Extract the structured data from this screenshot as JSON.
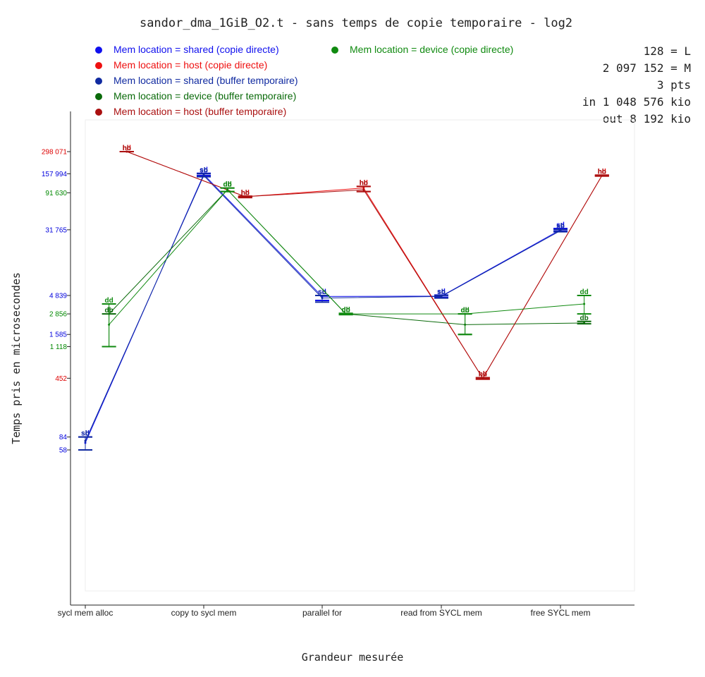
{
  "chart_data": {
    "type": "line",
    "title": "sandor_dma_1GiB_O2.t - sans temps de copie temporaire - log2",
    "xlabel": "Grandeur mesurée",
    "ylabel": "Temps pris en microsecondes",
    "y_scale": "log2",
    "categories": [
      "sycl mem alloc",
      "copy to sycl mem",
      "parallel for",
      "read from SYCL mem",
      "free SYCL mem"
    ],
    "y_ticks": [
      {
        "label": "298 071",
        "value": 298071,
        "color": "#dd0000"
      },
      {
        "label": "157 994",
        "value": 157994,
        "color": "#0000dd"
      },
      {
        "label": "91 630",
        "value": 91630,
        "color": "#008800"
      },
      {
        "label": "31 765",
        "value": 31765,
        "color": "#0000dd"
      },
      {
        "label": "4 839",
        "value": 4839,
        "color": "#0000dd"
      },
      {
        "label": "2 856",
        "value": 2856,
        "color": "#008800"
      },
      {
        "label": "1 585",
        "value": 1585,
        "color": "#0000dd"
      },
      {
        "label": "1 118",
        "value": 1118,
        "color": "#008800"
      },
      {
        "label": "452",
        "value": 452,
        "color": "#dd0000"
      },
      {
        "label": "84",
        "value": 84,
        "color": "#0000dd"
      },
      {
        "label": "58",
        "value": 58,
        "color": "#0000dd"
      }
    ],
    "info": [
      "128 = L",
      "2 097 152 = M",
      "3 pts",
      "in 1 048 576 kio",
      "out 8 192 kio"
    ],
    "series": [
      {
        "name": "Mem location = shared (copie directe)",
        "tag": "sd",
        "color": "#1010ee",
        "offset": 0,
        "values": [
          71,
          155000,
          4700,
          4750,
          31765
        ],
        "err_low": [
          58,
          150000,
          4200,
          4600,
          30500
        ],
        "err_high": [
          84,
          160000,
          4839,
          4900,
          33000
        ]
      },
      {
        "name": "Mem location = host (copie directe)",
        "tag": "hd",
        "color": "#ee1010",
        "offset": 0.35,
        "values": [
          298071,
          82000,
          105000,
          452,
          150000
        ],
        "err_low": [
          298071,
          80000,
          95000,
          440,
          148000
        ],
        "err_high": [
          298071,
          83000,
          110000,
          460,
          152000
        ]
      },
      {
        "name": "Mem location = shared (buffer temporaire)",
        "tag": "sb",
        "color": "#102aa0",
        "offset": 0,
        "values": [
          75,
          150000,
          4500,
          4700,
          31000
        ],
        "err_low": [
          58,
          145000,
          4000,
          4500,
          30000
        ],
        "err_high": [
          84,
          158000,
          4839,
          4850,
          32000
        ]
      },
      {
        "name": "Mem location = device (buffer temporaire)",
        "tag": "db",
        "color": "#0a6a0a",
        "offset": 0.2,
        "values": [
          2856,
          100000,
          2856,
          2100,
          2200
        ],
        "err_low": [
          1118,
          95000,
          2800,
          1585,
          2150
        ],
        "err_high": [
          2856,
          105000,
          2900,
          2856,
          2300
        ]
      },
      {
        "name": "Mem location = host (buffer temporaire)",
        "tag": "hb",
        "color": "#aa1010",
        "offset": 0.35,
        "values": [
          298071,
          82000,
          100000,
          452,
          150000
        ],
        "err_low": [
          298071,
          80000,
          95000,
          440,
          148000
        ],
        "err_high": [
          298071,
          83000,
          110000,
          460,
          152000
        ]
      },
      {
        "name": "Mem location = device (copie directe)",
        "tag": "dd",
        "color": "#108a10",
        "offset": 0.2,
        "values": [
          2100,
          100000,
          2856,
          2856,
          3800
        ],
        "err_low": [
          1118,
          95000,
          2800,
          1585,
          2856
        ],
        "err_high": [
          3800,
          105000,
          2900,
          2856,
          4839
        ]
      }
    ],
    "legend": {
      "left": [
        0,
        1,
        2,
        3,
        4
      ],
      "right": [
        5
      ]
    }
  }
}
